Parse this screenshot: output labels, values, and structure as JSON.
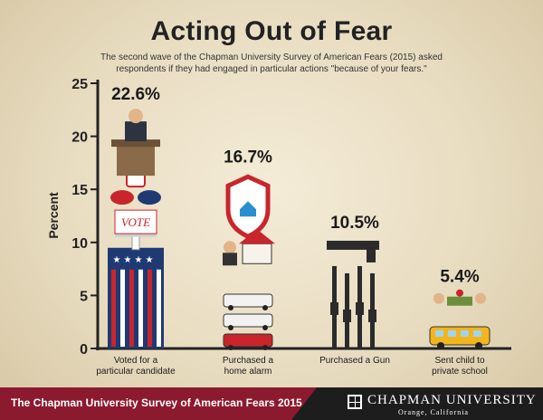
{
  "title": "Acting Out of Fear",
  "subtitle": "The second wave of the Chapman University Survey of American Fears (2015) asked respondents if they had engaged in particular actions \"because of your fears.\"",
  "footer": {
    "survey": "The Chapman University Survey of American Fears 2015",
    "university": "CHAPMAN UNIVERSITY",
    "location": "Orange, California"
  },
  "chart_data": {
    "type": "bar",
    "ylabel": "Percent",
    "ylim": [
      0,
      25
    ],
    "yticks": [
      0,
      5,
      10,
      15,
      20,
      25
    ],
    "categories": [
      "Voted for a\nparticular candidate",
      "Purchased a\nhome alarm",
      "Purchased a Gun",
      "Sent child to\nprivate school"
    ],
    "values": [
      22.6,
      16.7,
      10.5,
      5.4
    ],
    "value_labels": [
      "22.6%",
      "16.7%",
      "10.5%",
      "5.4%"
    ],
    "icons": [
      "voting-illustration-icon",
      "home-security-icon",
      "guns-icon",
      "school-bus-icon"
    ],
    "colors": {
      "red": "#c8252c",
      "blue": "#1f3a73",
      "axis": "#222222",
      "dark": "#2b2b2b"
    }
  }
}
